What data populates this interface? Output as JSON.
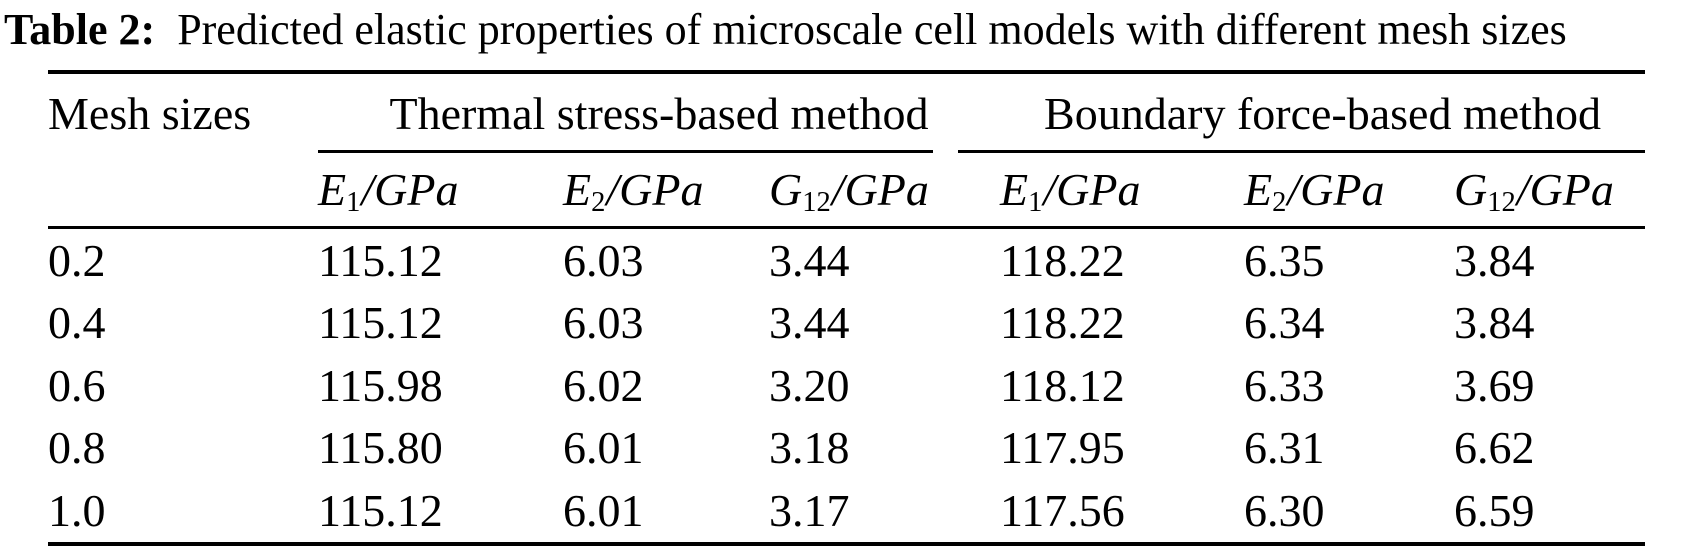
{
  "title": {
    "label": "Table 2:",
    "text": "Predicted elastic properties of microscale cell models with different mesh sizes"
  },
  "table": {
    "row_header_col": "Mesh sizes",
    "groups": [
      {
        "label": "Thermal stress-based method"
      },
      {
        "label": "Boundary force-based method"
      }
    ],
    "columns": [
      {
        "base": "E",
        "sub": "1",
        "rest": "/GPa"
      },
      {
        "base": "E",
        "sub": "2",
        "rest": "/GPa"
      },
      {
        "base": "G",
        "sub": "12",
        "rest": "/GPa"
      },
      {
        "base": "E",
        "sub": "1",
        "rest": "/GPa"
      },
      {
        "base": "E",
        "sub": "2",
        "rest": "/GPa"
      },
      {
        "base": "G",
        "sub": "12",
        "rest": "/GPa"
      }
    ],
    "rows": [
      {
        "mesh": "0.2",
        "values": [
          "115.12",
          "6.03",
          "3.44",
          "118.22",
          "6.35",
          "3.84"
        ]
      },
      {
        "mesh": "0.4",
        "values": [
          "115.12",
          "6.03",
          "3.44",
          "118.22",
          "6.34",
          "3.84"
        ]
      },
      {
        "mesh": "0.6",
        "values": [
          "115.98",
          "6.02",
          "3.20",
          "118.12",
          "6.33",
          "3.69"
        ]
      },
      {
        "mesh": "0.8",
        "values": [
          "115.80",
          "6.01",
          "3.18",
          "117.95",
          "6.31",
          "6.62"
        ]
      },
      {
        "mesh": "1.0",
        "values": [
          "115.12",
          "6.01",
          "3.17",
          "117.56",
          "6.30",
          "6.59"
        ]
      }
    ],
    "colors": {
      "text": "#000000",
      "background": "#ffffff",
      "rule": "#000000"
    }
  }
}
